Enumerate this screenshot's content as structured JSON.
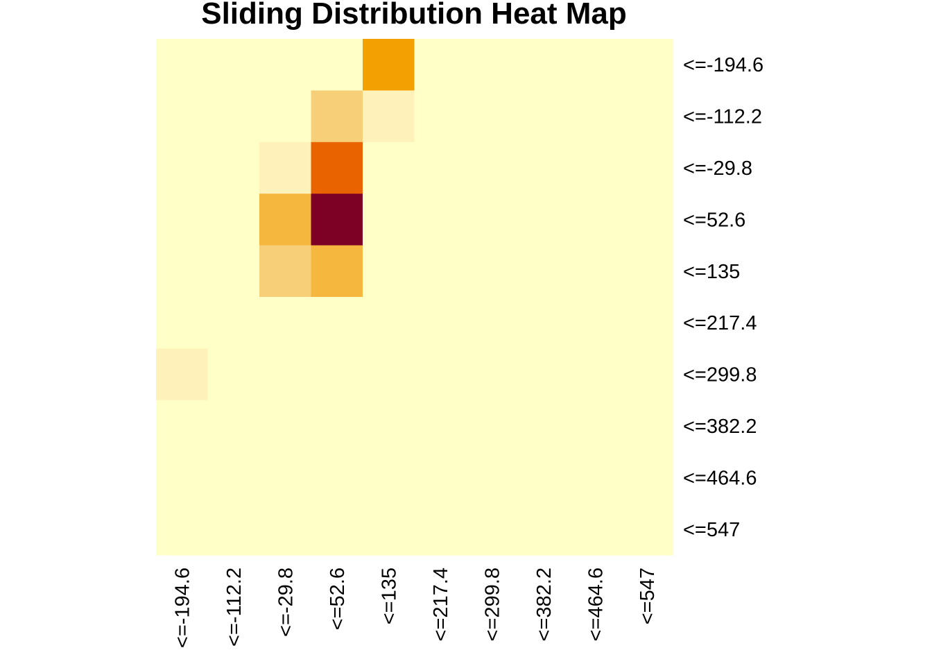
{
  "chart_data": {
    "type": "heatmap",
    "title": "Sliding Distribution Heat Map",
    "x_categories": [
      "<=-194.6",
      "<=-112.2",
      "<=-29.8",
      "<=52.6",
      "<=135",
      "<=217.4",
      "<=299.8",
      "<=382.2",
      "<=464.6",
      "<=547"
    ],
    "y_categories": [
      "<=-194.6",
      "<=-112.2",
      "<=-29.8",
      "<=52.6",
      "<=135",
      "<=217.4",
      "<=299.8",
      "<=382.2",
      "<=464.6",
      "<=547"
    ],
    "values": [
      [
        0,
        0,
        0,
        0,
        5,
        0,
        0,
        0,
        0,
        0
      ],
      [
        0,
        0,
        0,
        2,
        1,
        0,
        0,
        0,
        0,
        0
      ],
      [
        0,
        0,
        1,
        6,
        0,
        0,
        0,
        0,
        0,
        0
      ],
      [
        0,
        0,
        3,
        9,
        0,
        0,
        0,
        0,
        0,
        0
      ],
      [
        0,
        0,
        2,
        3,
        0,
        0,
        0,
        0,
        0,
        0
      ],
      [
        0,
        0,
        0,
        0,
        0,
        0,
        0,
        0,
        0,
        0
      ],
      [
        1,
        0,
        0,
        0,
        0,
        0,
        0,
        0,
        0,
        0
      ],
      [
        0,
        0,
        0,
        0,
        0,
        0,
        0,
        0,
        0,
        0
      ],
      [
        0,
        0,
        0,
        0,
        0,
        0,
        0,
        0,
        0,
        0
      ],
      [
        0,
        0,
        0,
        0,
        0,
        0,
        0,
        0,
        0,
        0
      ]
    ],
    "color_scale": {
      "0": "#FFFFC8",
      "1": "#FEF1B9",
      "2": "#F7CF79",
      "3": "#F6B73F",
      "5": "#F3A102",
      "6": "#E96301",
      "9": "#7D0025"
    },
    "colormap": "heat (YlOrRd, reversed)",
    "legend": "none",
    "grid": false
  }
}
